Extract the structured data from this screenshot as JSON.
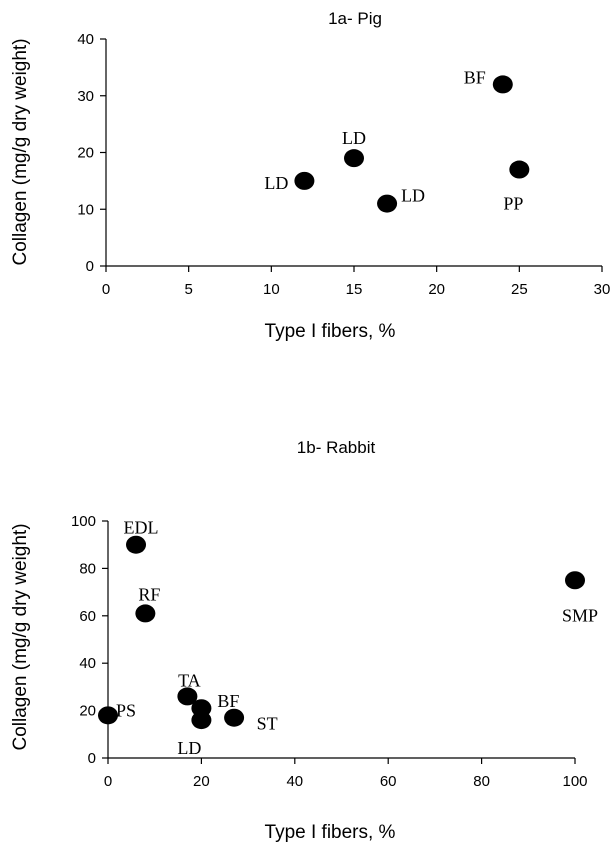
{
  "chart_data": [
    {
      "type": "scatter",
      "title": "1a- Pig",
      "xlabel": "Type I fibers, %",
      "ylabel": "Collagen (mg/g dry weight)",
      "xlim": [
        0,
        30
      ],
      "ylim": [
        0,
        40
      ],
      "xticks": [
        0,
        5,
        10,
        15,
        20,
        25,
        30
      ],
      "yticks": [
        0,
        10,
        20,
        30,
        40
      ],
      "grid": false,
      "points": [
        {
          "label": "LD",
          "x": 12,
          "y": 15
        },
        {
          "label": "LD",
          "x": 15,
          "y": 19
        },
        {
          "label": "LD",
          "x": 17,
          "y": 11
        },
        {
          "label": "BF",
          "x": 24,
          "y": 32
        },
        {
          "label": "PP",
          "x": 25,
          "y": 17
        }
      ]
    },
    {
      "type": "scatter",
      "title": "1b- Rabbit",
      "xlabel": "Type I fibers, %",
      "ylabel": "Collagen (mg/g dry weight)",
      "xlim": [
        0,
        100
      ],
      "ylim": [
        0,
        100
      ],
      "xticks": [
        0,
        20,
        40,
        60,
        80,
        100
      ],
      "yticks": [
        0,
        20,
        40,
        60,
        80,
        100
      ],
      "grid": false,
      "points": [
        {
          "label": "EDL",
          "x": 6,
          "y": 90
        },
        {
          "label": "RF",
          "x": 8,
          "y": 61
        },
        {
          "label": "PS",
          "x": 0,
          "y": 18
        },
        {
          "label": "TA",
          "x": 17,
          "y": 26
        },
        {
          "label": "BF",
          "x": 20,
          "y": 21
        },
        {
          "label": "LD",
          "x": 20,
          "y": 16
        },
        {
          "label": "ST",
          "x": 27,
          "y": 17
        },
        {
          "label": "SMP",
          "x": 100,
          "y": 75
        }
      ]
    }
  ]
}
